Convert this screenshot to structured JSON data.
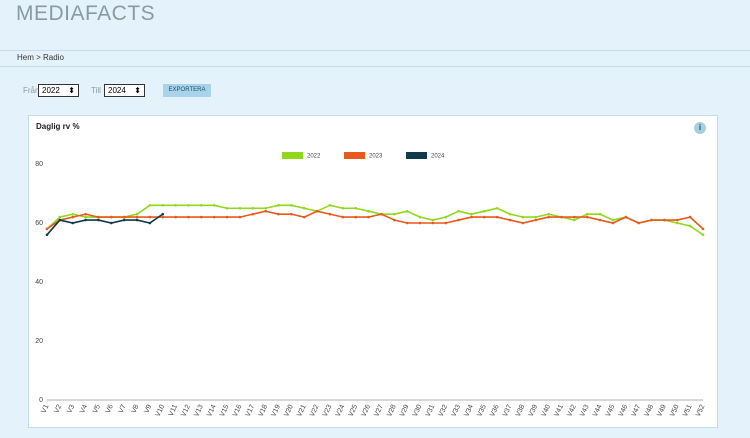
{
  "header": {
    "logo": "MEDIAFACTS"
  },
  "breadcrumb": "Hem > Radio",
  "filters": {
    "from_label": "Från",
    "from_value": "2022",
    "to_label": "Till",
    "to_value": "2024",
    "export_button": "EXPORTERA"
  },
  "info_icon": "i",
  "chart_data": {
    "type": "line",
    "title": "Daglig rv %",
    "categories": [
      "V1",
      "V2",
      "V3",
      "V4",
      "V5",
      "V6",
      "V7",
      "V8",
      "V9",
      "V10",
      "V11",
      "V12",
      "V13",
      "V14",
      "V15",
      "V16",
      "V17",
      "V18",
      "V19",
      "V20",
      "V21",
      "V22",
      "V23",
      "V24",
      "V25",
      "V26",
      "V27",
      "V28",
      "V29",
      "V30",
      "V31",
      "V32",
      "V33",
      "V34",
      "V35",
      "V36",
      "V37",
      "V38",
      "V39",
      "V40",
      "V41",
      "V42",
      "V43",
      "V44",
      "V45",
      "V46",
      "V47",
      "V48",
      "V49",
      "V50",
      "V51",
      "V52"
    ],
    "series": [
      {
        "name": "2022",
        "color": "#8fd81a",
        "values": [
          58,
          62,
          63,
          62,
          62,
          62,
          62,
          63,
          66,
          66,
          66,
          66,
          66,
          66,
          65,
          65,
          65,
          65,
          66,
          66,
          65,
          64,
          66,
          65,
          65,
          64,
          63,
          63,
          64,
          62,
          61,
          62,
          64,
          63,
          64,
          65,
          63,
          62,
          62,
          63,
          62,
          61,
          63,
          63,
          61,
          62,
          60,
          61,
          61,
          60,
          59,
          56
        ]
      },
      {
        "name": "2023",
        "color": "#e8591c",
        "values": [
          58,
          61,
          62,
          63,
          62,
          62,
          62,
          62,
          62,
          62,
          62,
          62,
          62,
          62,
          62,
          62,
          63,
          64,
          63,
          63,
          62,
          64,
          63,
          62,
          62,
          62,
          63,
          61,
          60,
          60,
          60,
          60,
          61,
          62,
          62,
          62,
          61,
          60,
          61,
          62,
          62,
          62,
          62,
          61,
          60,
          62,
          60,
          61,
          61,
          61,
          62,
          58
        ]
      },
      {
        "name": "2024",
        "color": "#0f3a48",
        "values": [
          56,
          61,
          60,
          61,
          61,
          60,
          61,
          61,
          60,
          63,
          null,
          null,
          null,
          null,
          null,
          null,
          null,
          null,
          null,
          null,
          null,
          null,
          null,
          null,
          null,
          null,
          null,
          null,
          null,
          null,
          null,
          null,
          null,
          null,
          null,
          null,
          null,
          null,
          null,
          null,
          null,
          null,
          null,
          null,
          null,
          null,
          null,
          null,
          null,
          null,
          null,
          null
        ]
      }
    ],
    "ylim": [
      0,
      80
    ],
    "yticks": [
      0,
      20,
      40,
      60,
      80
    ],
    "grid": false,
    "legend": "top"
  }
}
